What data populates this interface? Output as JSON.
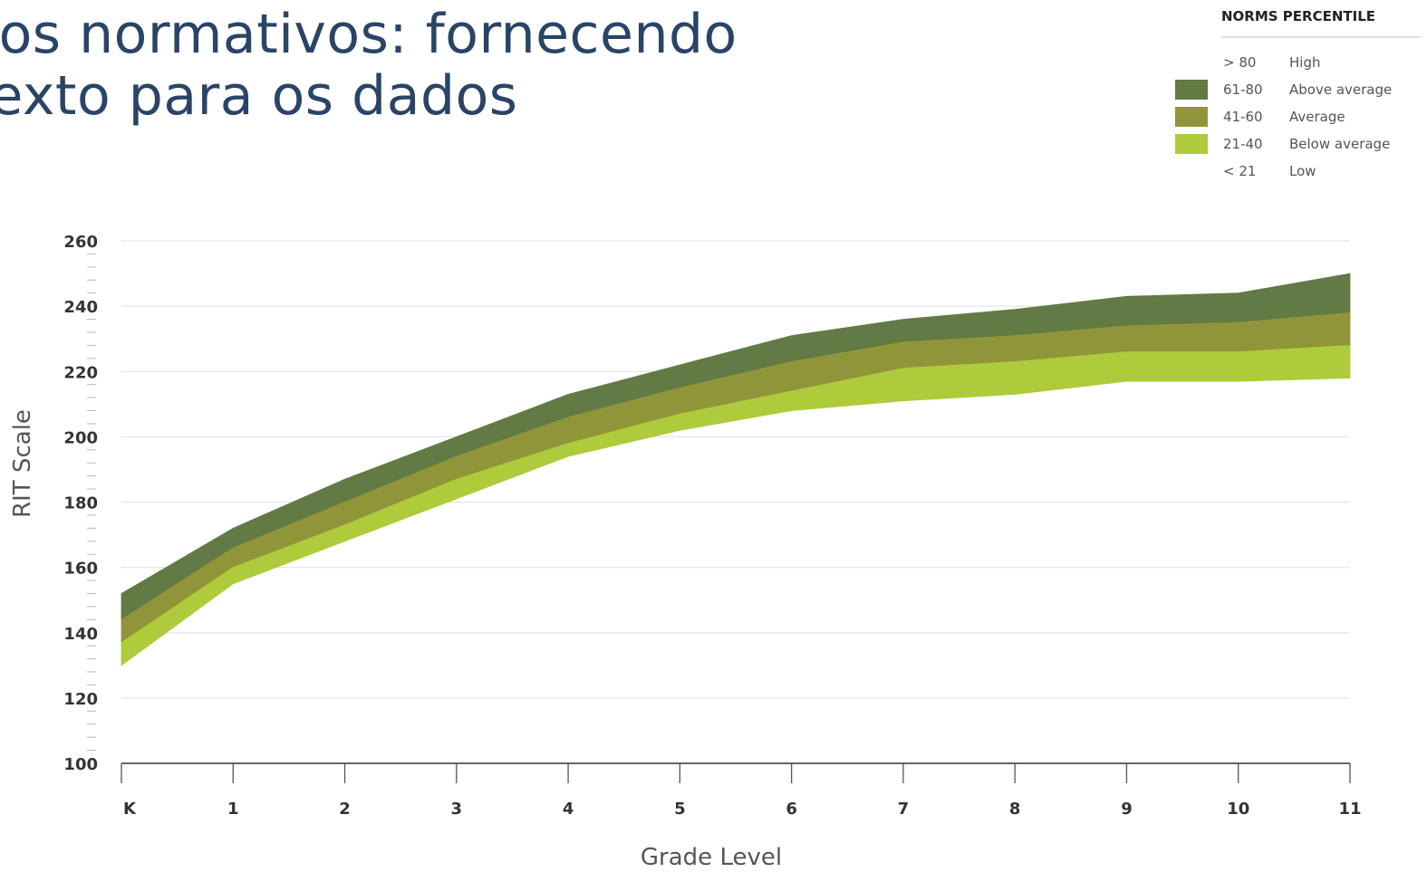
{
  "page": {
    "title_line1": "dos normativos: fornecendo",
    "title_line2": "ntexto para os dados"
  },
  "chart_data": {
    "type": "area",
    "xlabel": "Grade Level",
    "ylabel": "RIT Scale",
    "ylim": [
      100,
      260
    ],
    "yticks": [
      100,
      120,
      140,
      160,
      180,
      200,
      220,
      240,
      260
    ],
    "categories": [
      "K",
      "1",
      "2",
      "3",
      "4",
      "5",
      "6",
      "7",
      "8",
      "9",
      "10",
      "11"
    ],
    "grid": true,
    "boundaries": {
      "p20": [
        130,
        155,
        168,
        181,
        194,
        202,
        208,
        211,
        213,
        217,
        217,
        218
      ],
      "p40": [
        137,
        160,
        173,
        187,
        198,
        207,
        214,
        221,
        223,
        226,
        226,
        228
      ],
      "p60": [
        144,
        166,
        180,
        194,
        206,
        215,
        223,
        229,
        231,
        234,
        235,
        238
      ],
      "p80": [
        152,
        172,
        187,
        200,
        213,
        222,
        231,
        236,
        239,
        243,
        244,
        250
      ]
    },
    "series": [
      {
        "name": "Above average",
        "range": "61-80",
        "lower": "p60",
        "upper": "p80",
        "color": "#627a44"
      },
      {
        "name": "Average",
        "range": "41-60",
        "lower": "p40",
        "upper": "p60",
        "color": "#91953a"
      },
      {
        "name": "Below average",
        "range": "21-40",
        "lower": "p20",
        "upper": "p40",
        "color": "#aecb3b"
      }
    ],
    "legend": {
      "title": "NORMS PERCENTILE",
      "placement": "top-right",
      "entries": [
        {
          "range": "> 80",
          "label": "High",
          "color": null
        },
        {
          "range": "61-80",
          "label": "Above average",
          "color": "#627a44"
        },
        {
          "range": "41-60",
          "label": "Average",
          "color": "#91953a"
        },
        {
          "range": "21-40",
          "label": "Below average",
          "color": "#aecb3b"
        },
        {
          "range": "< 21",
          "label": "Low",
          "color": null
        }
      ]
    }
  }
}
